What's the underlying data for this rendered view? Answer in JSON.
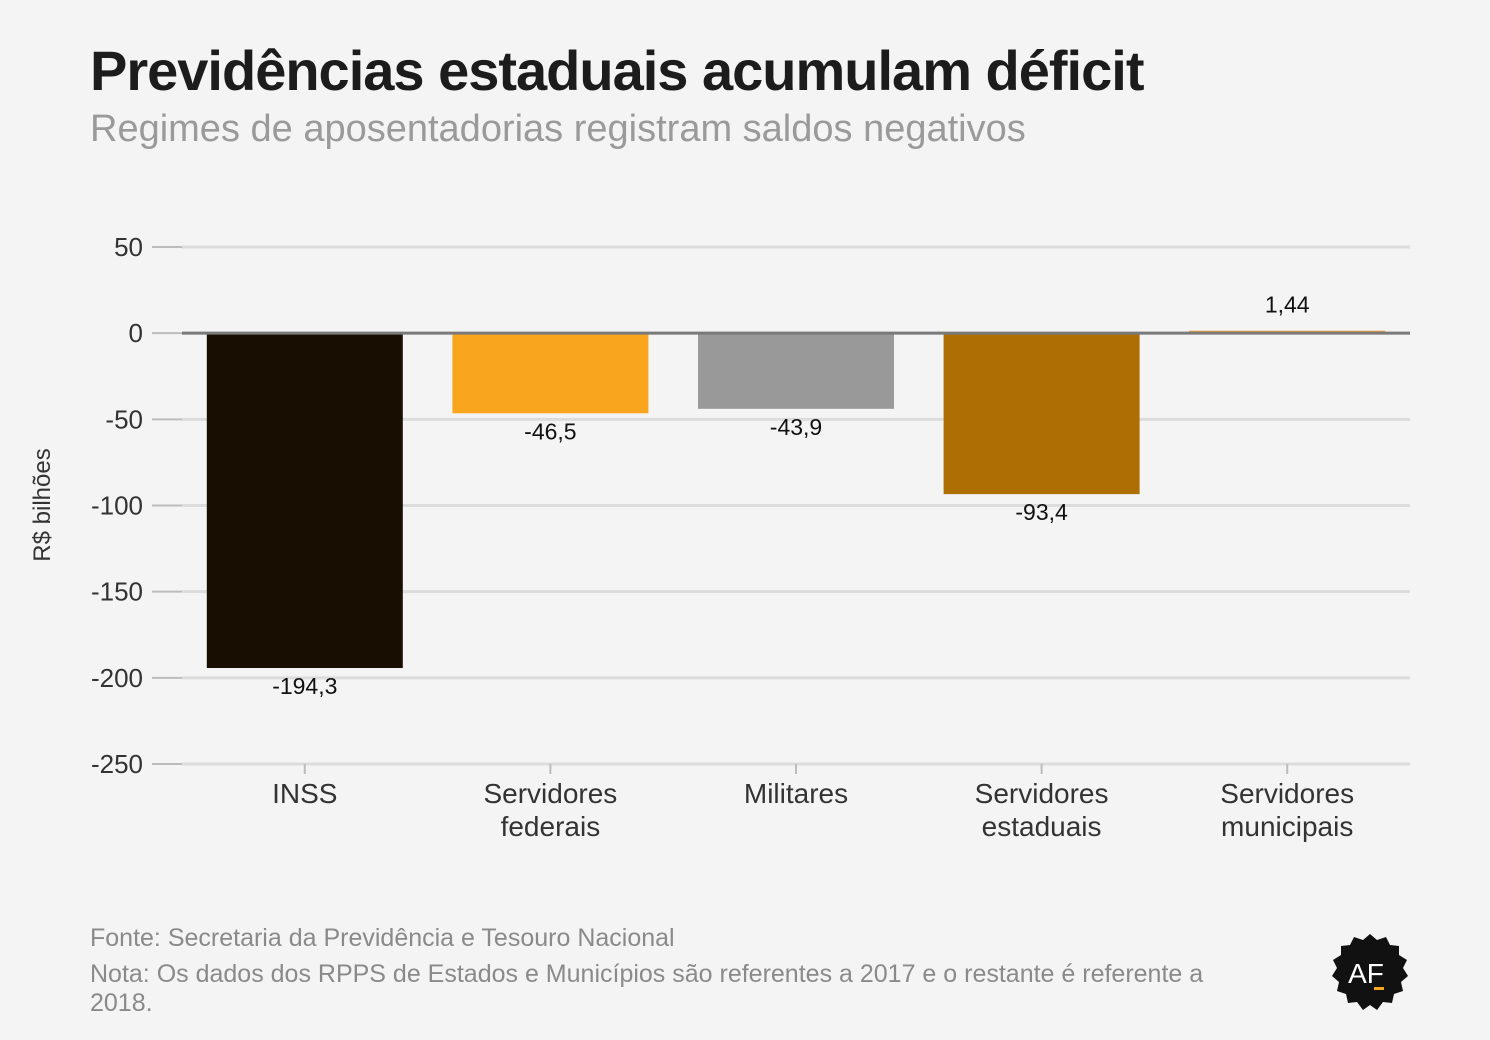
{
  "header": {
    "title": "Previdências estaduais acumulam déficit",
    "subtitle": "Regimes de aposentadorias registram saldos negativos"
  },
  "chart_data": {
    "type": "bar",
    "categories": [
      [
        "INSS"
      ],
      [
        "Servidores",
        "federais"
      ],
      [
        "Militares"
      ],
      [
        "Servidores",
        "estaduais"
      ],
      [
        "Servidores",
        "municipais"
      ]
    ],
    "values": [
      -194.3,
      -46.5,
      -43.9,
      -93.4,
      1.44
    ],
    "value_labels": [
      "-194,3",
      "-46,5",
      "-43,9",
      "-93,4",
      "1,44"
    ],
    "colors": [
      "#180f02",
      "#f9a51e",
      "#999999",
      "#ad6e04",
      "#e8a03a"
    ],
    "ylabel": "R$ bilhões",
    "ylim": [
      -250,
      50
    ],
    "yticks": [
      50,
      0,
      -50,
      -100,
      -150,
      -200,
      -250
    ],
    "ytick_labels": [
      "50",
      "0",
      "-50",
      "-100",
      "-150",
      "-200",
      "-250"
    ],
    "grid": true
  },
  "footer": {
    "source": "Fonte: Secretaria da Previdência e Tesouro Nacional",
    "note": "Nota: Os dados dos RPPS de Estados e Municípios são referentes a 2017 e o restante é referente a 2018."
  },
  "logo": {
    "text": "AF",
    "color": "#111111"
  }
}
